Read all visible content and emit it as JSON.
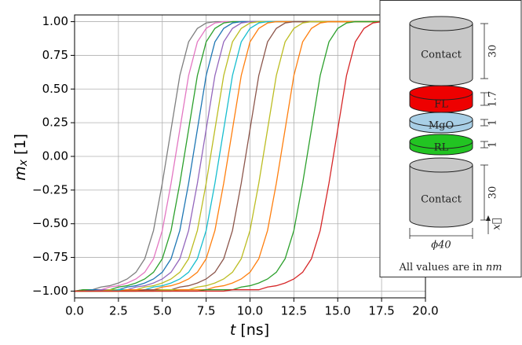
{
  "chart_data": {
    "type": "line",
    "xlabel": [
      "t",
      " [ns]"
    ],
    "ylabel": [
      "m",
      "x",
      " [1]"
    ],
    "x": [
      0,
      0.5,
      1,
      1.5,
      2,
      2.5,
      3,
      3.5,
      4,
      4.5,
      5,
      5.5,
      6,
      6.5,
      7,
      7.5,
      8,
      8.5,
      9,
      9.5,
      10,
      10.5,
      11,
      11.5,
      12,
      12.5,
      13,
      13.5,
      14,
      14.5,
      15,
      15.5,
      16,
      16.5,
      17,
      17.5,
      18,
      18.5,
      19,
      19.5,
      20
    ],
    "series": [
      {
        "color": "#7f7f7f",
        "values": [
          -1,
          -0.99,
          -0.99,
          -0.97,
          -0.96,
          -0.94,
          -0.91,
          -0.86,
          -0.76,
          -0.55,
          -0.2,
          0.2,
          0.6,
          0.85,
          0.95,
          0.99,
          1,
          1,
          1,
          1,
          1,
          1,
          1,
          1,
          1,
          1,
          1,
          1,
          1,
          1,
          1,
          1,
          1,
          1,
          1,
          1,
          1,
          1,
          1,
          1,
          1
        ]
      },
      {
        "color": "#e377c2",
        "values": [
          -1,
          -0.99,
          -0.99,
          -0.99,
          -0.97,
          -0.96,
          -0.94,
          -0.91,
          -0.86,
          -0.76,
          -0.55,
          -0.2,
          0.2,
          0.6,
          0.85,
          0.95,
          0.99,
          1,
          1,
          1,
          1,
          1,
          1,
          1,
          1,
          1,
          1,
          1,
          1,
          1,
          1,
          1,
          1,
          1,
          1,
          1,
          1,
          1,
          1,
          1,
          1
        ]
      },
      {
        "color": "#2ca02c",
        "values": [
          -1,
          -0.99,
          -0.99,
          -0.99,
          -0.99,
          -0.97,
          -0.96,
          -0.94,
          -0.91,
          -0.86,
          -0.76,
          -0.55,
          -0.2,
          0.2,
          0.6,
          0.85,
          0.95,
          0.99,
          1,
          1,
          1,
          1,
          1,
          1,
          1,
          1,
          1,
          1,
          1,
          1,
          1,
          1,
          1,
          1,
          1,
          1,
          1,
          1,
          1,
          1,
          1
        ]
      },
      {
        "color": "#1f77b4",
        "values": [
          -1,
          -1,
          -0.99,
          -0.99,
          -0.99,
          -0.99,
          -0.97,
          -0.96,
          -0.94,
          -0.91,
          -0.86,
          -0.76,
          -0.55,
          -0.2,
          0.2,
          0.6,
          0.85,
          0.95,
          0.99,
          1,
          1,
          1,
          1,
          1,
          1,
          1,
          1,
          1,
          1,
          1,
          1,
          1,
          1,
          1,
          1,
          1,
          1,
          1,
          1,
          1,
          1
        ]
      },
      {
        "color": "#9467bd",
        "values": [
          -1,
          -1,
          -1,
          -0.99,
          -0.99,
          -0.99,
          -0.99,
          -0.97,
          -0.96,
          -0.94,
          -0.91,
          -0.86,
          -0.76,
          -0.55,
          -0.2,
          0.2,
          0.6,
          0.85,
          0.95,
          0.99,
          1,
          1,
          1,
          1,
          1,
          1,
          1,
          1,
          1,
          1,
          1,
          1,
          1,
          1,
          1,
          1,
          1,
          1,
          1,
          1,
          1
        ]
      },
      {
        "color": "#bcbd22",
        "values": [
          -1,
          -1,
          -1,
          -1,
          -0.99,
          -0.99,
          -0.99,
          -0.99,
          -0.97,
          -0.96,
          -0.94,
          -0.91,
          -0.86,
          -0.76,
          -0.55,
          -0.2,
          0.2,
          0.6,
          0.85,
          0.95,
          0.99,
          1,
          1,
          1,
          1,
          1,
          1,
          1,
          1,
          1,
          1,
          1,
          1,
          1,
          1,
          1,
          1,
          1,
          1,
          1,
          1
        ]
      },
      {
        "color": "#17becf",
        "values": [
          -1,
          -1,
          -1,
          -1,
          -1,
          -0.99,
          -0.99,
          -0.99,
          -0.99,
          -0.97,
          -0.96,
          -0.94,
          -0.91,
          -0.86,
          -0.76,
          -0.55,
          -0.2,
          0.2,
          0.6,
          0.85,
          0.95,
          0.99,
          1,
          1,
          1,
          1,
          1,
          1,
          1,
          1,
          1,
          1,
          1,
          1,
          1,
          1,
          1,
          1,
          1,
          1,
          1
        ]
      },
      {
        "color": "#ff7f0e",
        "values": [
          -1,
          -1,
          -1,
          -1,
          -1,
          -1,
          -0.99,
          -0.99,
          -0.99,
          -0.99,
          -0.97,
          -0.96,
          -0.94,
          -0.91,
          -0.86,
          -0.76,
          -0.55,
          -0.2,
          0.2,
          0.6,
          0.85,
          0.95,
          0.99,
          1,
          1,
          1,
          1,
          1,
          1,
          1,
          1,
          1,
          1,
          1,
          1,
          1,
          1,
          1,
          1,
          1,
          1
        ]
      },
      {
        "color": "#8c564b",
        "values": [
          -1,
          -1,
          -1,
          -1,
          -1,
          -1,
          -1,
          -1,
          -0.99,
          -0.99,
          -0.99,
          -0.99,
          -0.97,
          -0.96,
          -0.94,
          -0.91,
          -0.86,
          -0.76,
          -0.55,
          -0.2,
          0.2,
          0.6,
          0.85,
          0.95,
          0.99,
          1,
          1,
          1,
          1,
          1,
          1,
          1,
          1,
          1,
          1,
          1,
          1,
          1,
          1,
          1,
          1
        ]
      },
      {
        "color": "#bcbd22",
        "values": [
          -1,
          -1,
          -1,
          -1,
          -1,
          -1,
          -1,
          -1,
          -1,
          -1,
          -0.99,
          -0.99,
          -0.99,
          -0.99,
          -0.97,
          -0.96,
          -0.94,
          -0.91,
          -0.86,
          -0.76,
          -0.55,
          -0.2,
          0.2,
          0.6,
          0.85,
          0.95,
          0.99,
          1,
          1,
          1,
          1,
          1,
          1,
          1,
          1,
          1,
          1,
          1,
          1,
          1,
          1
        ]
      },
      {
        "color": "#ff7f0e",
        "values": [
          -1,
          -1,
          -1,
          -1,
          -1,
          -1,
          -1,
          -1,
          -1,
          -1,
          -1,
          -1,
          -0.99,
          -0.99,
          -0.99,
          -0.99,
          -0.97,
          -0.96,
          -0.94,
          -0.91,
          -0.86,
          -0.76,
          -0.55,
          -0.2,
          0.2,
          0.6,
          0.85,
          0.95,
          0.99,
          1,
          1,
          1,
          1,
          1,
          1,
          1,
          1,
          1,
          1,
          1,
          1
        ]
      },
      {
        "color": "#2ca02c",
        "values": [
          -1,
          -1,
          -1,
          -1,
          -1,
          -1,
          -1,
          -1,
          -1,
          -1,
          -1,
          -1,
          -1,
          -1,
          -1,
          -0.99,
          -0.99,
          -0.99,
          -0.99,
          -0.97,
          -0.96,
          -0.94,
          -0.91,
          -0.86,
          -0.76,
          -0.55,
          -0.2,
          0.2,
          0.6,
          0.85,
          0.95,
          0.99,
          1,
          1,
          1,
          1,
          1,
          1,
          1,
          1,
          1
        ]
      },
      {
        "color": "#d62728",
        "values": [
          -1,
          -1,
          -1,
          -1,
          -1,
          -1,
          -1,
          -1,
          -1,
          -1,
          -1,
          -1,
          -1,
          -1,
          -1,
          -1,
          -1,
          -1,
          -0.99,
          -0.99,
          -0.99,
          -0.99,
          -0.97,
          -0.96,
          -0.94,
          -0.91,
          -0.86,
          -0.76,
          -0.55,
          -0.2,
          0.2,
          0.6,
          0.85,
          0.95,
          0.99,
          1,
          1,
          1,
          1,
          1,
          1
        ]
      }
    ],
    "xlim": [
      0,
      20
    ],
    "ylim": [
      -1.05,
      1.05
    ],
    "xticks": [
      {
        "value": 0,
        "label": "0.0"
      },
      {
        "value": 2.5,
        "label": "2.5"
      },
      {
        "value": 5,
        "label": "5.0"
      },
      {
        "value": 7.5,
        "label": "7.5"
      },
      {
        "value": 10,
        "label": "10.0"
      },
      {
        "value": 12.5,
        "label": "12.5"
      },
      {
        "value": 15,
        "label": "15.0"
      },
      {
        "value": 17.5,
        "label": "17.5"
      },
      {
        "value": 20,
        "label": "20.0"
      }
    ],
    "yticks": [
      {
        "value": -1,
        "label": "−1.00"
      },
      {
        "value": -0.75,
        "label": "−0.75"
      },
      {
        "value": -0.5,
        "label": "−0.50"
      },
      {
        "value": -0.25,
        "label": "−0.25"
      },
      {
        "value": 0,
        "label": "0.00"
      },
      {
        "value": 0.25,
        "label": "0.25"
      },
      {
        "value": 0.5,
        "label": "0.50"
      },
      {
        "value": 0.75,
        "label": "0.75"
      },
      {
        "value": 1,
        "label": "1.00"
      }
    ],
    "grid": true,
    "inset": {
      "contact_top": "Contact",
      "fl": "FL",
      "mgo": "MgO",
      "rl": "RL",
      "contact_bottom": "Contact",
      "dim_top": "30",
      "dim_fl": "1.7",
      "dim_mgo": "1",
      "dim_rl": "1",
      "dim_bottom": "30",
      "diameter": "ϕ40",
      "axis": "x⃗",
      "note": [
        "All values are in ",
        "nm"
      ]
    }
  }
}
